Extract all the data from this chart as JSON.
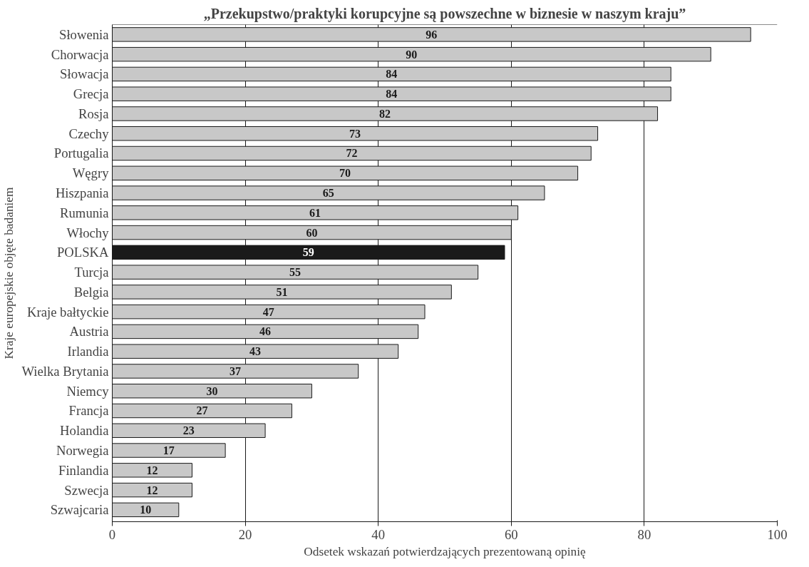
{
  "chart_data": {
    "type": "bar",
    "orientation": "horizontal",
    "title": "„Przekupstwo/praktyki korupcyjne są powszechne w biznesie w naszym kraju”",
    "xlabel": "Odsetek wskazań potwierdzających prezentowaną opinię",
    "ylabel": "Kraje europejskie objęte badaniem",
    "categories": [
      "Słowenia",
      "Chorwacja",
      "Słowacja",
      "Grecja",
      "Rosja",
      "Czechy",
      "Portugalia",
      "Węgry",
      "Hiszpania",
      "Rumunia",
      "Włochy",
      "POLSKA",
      "Turcja",
      "Belgia",
      "Kraje bałtyckie",
      "Austria",
      "Irlandia",
      "Wielka Brytania",
      "Niemcy",
      "Francja",
      "Holandia",
      "Norwegia",
      "Finlandia",
      "Szwecja",
      "Szwajcaria"
    ],
    "values": [
      96,
      90,
      84,
      84,
      82,
      73,
      72,
      70,
      65,
      61,
      60,
      59,
      55,
      51,
      47,
      46,
      43,
      37,
      30,
      27,
      23,
      17,
      12,
      12,
      10
    ],
    "colors": [
      "#c8c8c8",
      "#c8c8c8",
      "#c8c8c8",
      "#c8c8c8",
      "#c8c8c8",
      "#c8c8c8",
      "#c8c8c8",
      "#c8c8c8",
      "#c8c8c8",
      "#c8c8c8",
      "#c8c8c8",
      "#1a1a1a",
      "#c8c8c8",
      "#c8c8c8",
      "#c8c8c8",
      "#c8c8c8",
      "#c8c8c8",
      "#c8c8c8",
      "#c8c8c8",
      "#c8c8c8",
      "#c8c8c8",
      "#c8c8c8",
      "#c8c8c8",
      "#c8c8c8",
      "#c8c8c8"
    ],
    "xlim": [
      0,
      100
    ],
    "xticks": [
      0,
      20,
      40,
      60,
      80,
      100
    ],
    "grid": "x",
    "data_labels": true
  }
}
